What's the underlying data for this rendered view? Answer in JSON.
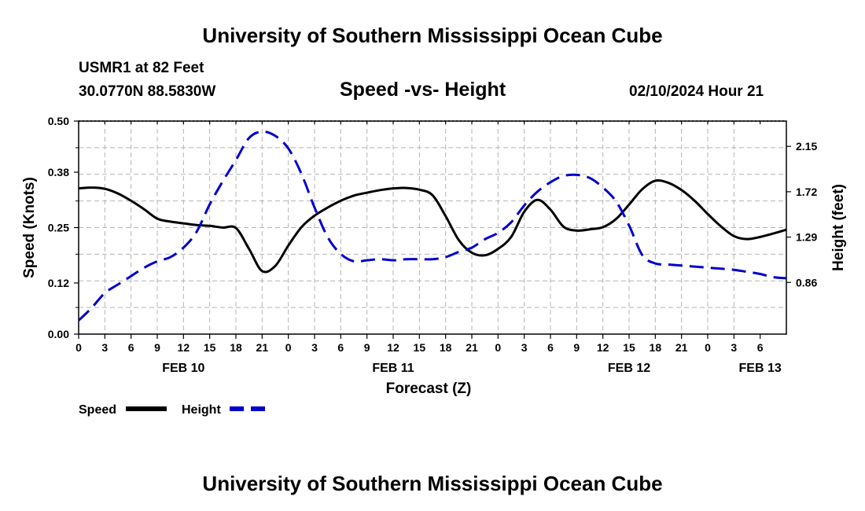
{
  "header": {
    "title": "University of Southern Mississippi Ocean Cube",
    "station": "USMR1 at 82 Feet",
    "coords": "30.0770N  88.5830W",
    "subtitle": "Speed -vs- Height",
    "datetime": "02/10/2024 Hour 21"
  },
  "footer": {
    "title": "University of Southern Mississippi Ocean Cube"
  },
  "chart_data": {
    "type": "line",
    "title": "Speed -vs- Height",
    "xlabel": "Forecast (Z)",
    "ylabel": "Speed (Knots)",
    "y2label": "Height (feet)",
    "grid": true,
    "legend_position": "bottom-left",
    "x_hours_range": [
      0,
      81
    ],
    "x_tick_step_hours": 3,
    "x_tick_labels": [
      "0",
      "3",
      "6",
      "9",
      "12",
      "15",
      "18",
      "21",
      "0",
      "3",
      "6",
      "9",
      "12",
      "15",
      "18",
      "21",
      "0",
      "3",
      "6",
      "9",
      "12",
      "15",
      "18",
      "21",
      "0",
      "3",
      "6"
    ],
    "date_labels": [
      {
        "label": "FEB 10",
        "hour": 12
      },
      {
        "label": "FEB 11",
        "hour": 36
      },
      {
        "label": "FEB 12",
        "hour": 63
      },
      {
        "label": "FEB 13",
        "hour": 78
      }
    ],
    "ylim": [
      0,
      0.5
    ],
    "y_ticks": [
      0.0,
      0.12,
      0.25,
      0.38,
      0.5
    ],
    "y_tick_labels": [
      "0.00",
      "0.12",
      "0.25",
      "0.38",
      "0.50"
    ],
    "y2lim": [
      0.37,
      2.39
    ],
    "y2_ticks": [
      0.86,
      1.29,
      1.72,
      2.15
    ],
    "y2_tick_labels": [
      "0.86",
      "1.29",
      "1.72",
      "2.15"
    ],
    "series": [
      {
        "name": "Speed",
        "axis": "left",
        "color": "#000000",
        "dash": "solid",
        "x": [
          0,
          1.5,
          3,
          4.5,
          6,
          7.5,
          9,
          10.5,
          12,
          13.5,
          15,
          16.5,
          18,
          19.5,
          21,
          22.5,
          24,
          25.5,
          27,
          28.5,
          30,
          31.5,
          33,
          34.5,
          36,
          37.5,
          39,
          40.5,
          42,
          43.5,
          45,
          46.5,
          48,
          49.5,
          51,
          52.5,
          54,
          55.5,
          57,
          58.5,
          60,
          61.5,
          63,
          64.5,
          66,
          67.5,
          69,
          70.5,
          72,
          73.5,
          75,
          76.5,
          78,
          79.5,
          81
        ],
        "values": [
          0.342,
          0.344,
          0.341,
          0.33,
          0.313,
          0.293,
          0.271,
          0.264,
          0.26,
          0.256,
          0.254,
          0.25,
          0.249,
          0.2,
          0.148,
          0.16,
          0.208,
          0.251,
          0.278,
          0.297,
          0.313,
          0.325,
          0.332,
          0.338,
          0.342,
          0.343,
          0.339,
          0.326,
          0.277,
          0.221,
          0.191,
          0.185,
          0.2,
          0.228,
          0.287,
          0.315,
          0.292,
          0.252,
          0.243,
          0.246,
          0.251,
          0.27,
          0.304,
          0.34,
          0.36,
          0.355,
          0.338,
          0.313,
          0.282,
          0.253,
          0.23,
          0.223,
          0.228,
          0.236,
          0.245
        ]
      },
      {
        "name": "Height",
        "axis": "right",
        "color": "#0000cc",
        "dash": "dashed",
        "x": [
          0,
          1.5,
          3,
          4.5,
          6,
          7.5,
          9,
          10.5,
          12,
          13.5,
          15,
          16.5,
          18,
          19.5,
          21,
          22.5,
          24,
          25.5,
          27,
          28.5,
          30,
          31.5,
          33,
          34.5,
          36,
          37.5,
          39,
          40.5,
          42,
          43.5,
          45,
          46.5,
          48,
          49.5,
          51,
          52.5,
          54,
          55.5,
          57,
          58.5,
          60,
          61.5,
          63,
          64.5,
          66,
          67.5,
          69,
          70.5,
          72,
          73.5,
          75,
          76.5,
          78,
          79.5,
          81
        ],
        "values": [
          0.5,
          0.62,
          0.76,
          0.84,
          0.92,
          1.0,
          1.06,
          1.1,
          1.19,
          1.34,
          1.6,
          1.82,
          2.02,
          2.23,
          2.29,
          2.25,
          2.13,
          1.89,
          1.57,
          1.29,
          1.13,
          1.06,
          1.07,
          1.08,
          1.07,
          1.08,
          1.08,
          1.08,
          1.1,
          1.15,
          1.19,
          1.27,
          1.33,
          1.43,
          1.59,
          1.72,
          1.81,
          1.87,
          1.88,
          1.85,
          1.76,
          1.63,
          1.4,
          1.12,
          1.04,
          1.03,
          1.02,
          1.01,
          1.0,
          0.99,
          0.98,
          0.96,
          0.94,
          0.91,
          0.9
        ]
      }
    ],
    "legend": [
      {
        "label": "Speed",
        "color": "#000000",
        "dash": "solid"
      },
      {
        "label": "Height",
        "color": "#0000cc",
        "dash": "dashed"
      }
    ]
  }
}
